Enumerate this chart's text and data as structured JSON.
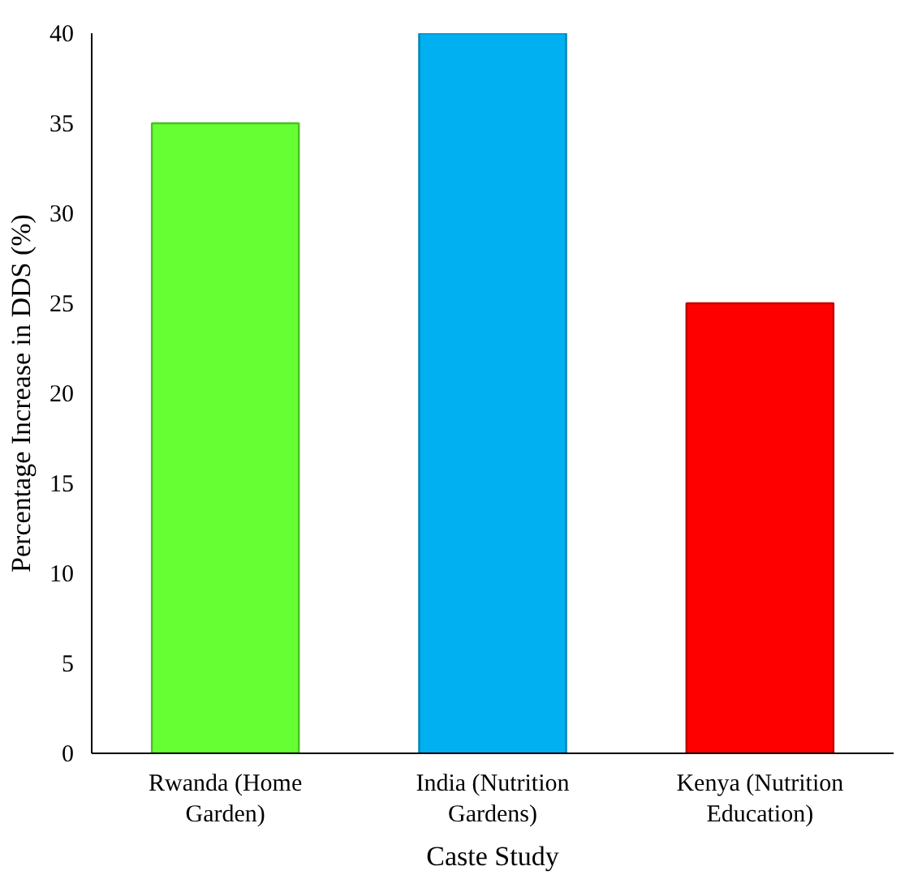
{
  "chart_data": {
    "type": "bar",
    "xlabel": "Caste Study",
    "ylabel": "Percentage Increase in DDS (%)",
    "categories": [
      "Rwanda (Home Garden)",
      "India (Nutrition Gardens)",
      "Kenya (Nutrition Education)"
    ],
    "values": [
      35,
      40,
      25
    ],
    "colors": [
      "#66ff33",
      "#00b0f0",
      "#ff0000"
    ],
    "ylim": [
      0,
      40
    ],
    "yticks": [
      0,
      5,
      10,
      15,
      20,
      25,
      30,
      35,
      40
    ],
    "grid": false
  }
}
